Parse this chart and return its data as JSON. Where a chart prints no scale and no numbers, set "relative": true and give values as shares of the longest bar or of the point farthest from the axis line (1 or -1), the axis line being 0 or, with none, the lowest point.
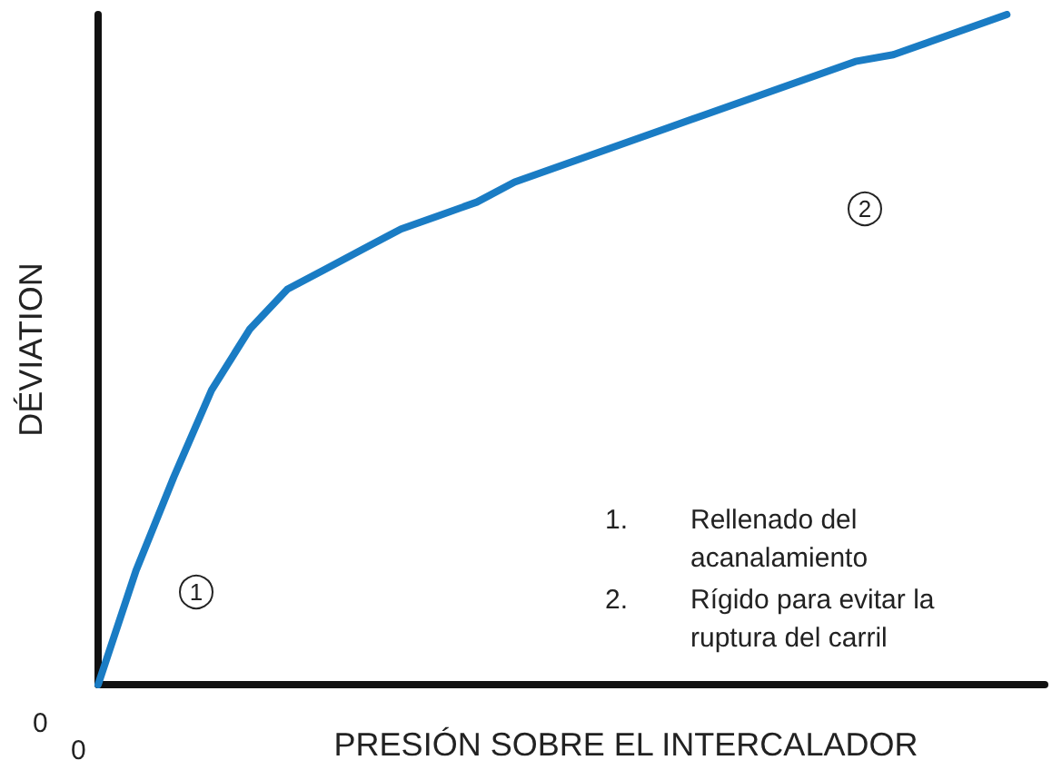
{
  "chart_data": {
    "type": "line",
    "relative": true,
    "xlabel": "PRESIÓN SOBRE EL INTERCALADOR",
    "ylabel": "DÉVIATION",
    "categories": [
      null,
      null,
      null,
      null,
      null,
      null,
      null,
      null,
      null,
      null,
      null,
      null,
      null,
      null,
      null,
      null,
      null,
      null,
      null,
      null,
      null,
      null,
      null,
      null,
      null,
      null
    ],
    "series": [
      {
        "color": "#1a7cc4",
        "values": [
          0,
          0.17,
          0.31,
          0.44,
          0.53,
          0.59,
          0.62,
          0.65,
          0.68,
          0.7,
          0.72,
          0.75,
          0.77,
          0.79,
          0.81,
          0.83,
          0.85,
          0.87,
          0.89,
          0.91,
          0.93,
          0.94,
          0.96,
          0.98,
          1,
          null
        ]
      }
    ],
    "annotations": [
      "0",
      "0",
      "1",
      "2",
      "1.",
      "Rellenado del acanalamiento",
      "2.",
      "Rígido para evitar la ruptura del carril"
    ],
    "marker": "none",
    "line_style": "solid",
    "grid": false
  }
}
